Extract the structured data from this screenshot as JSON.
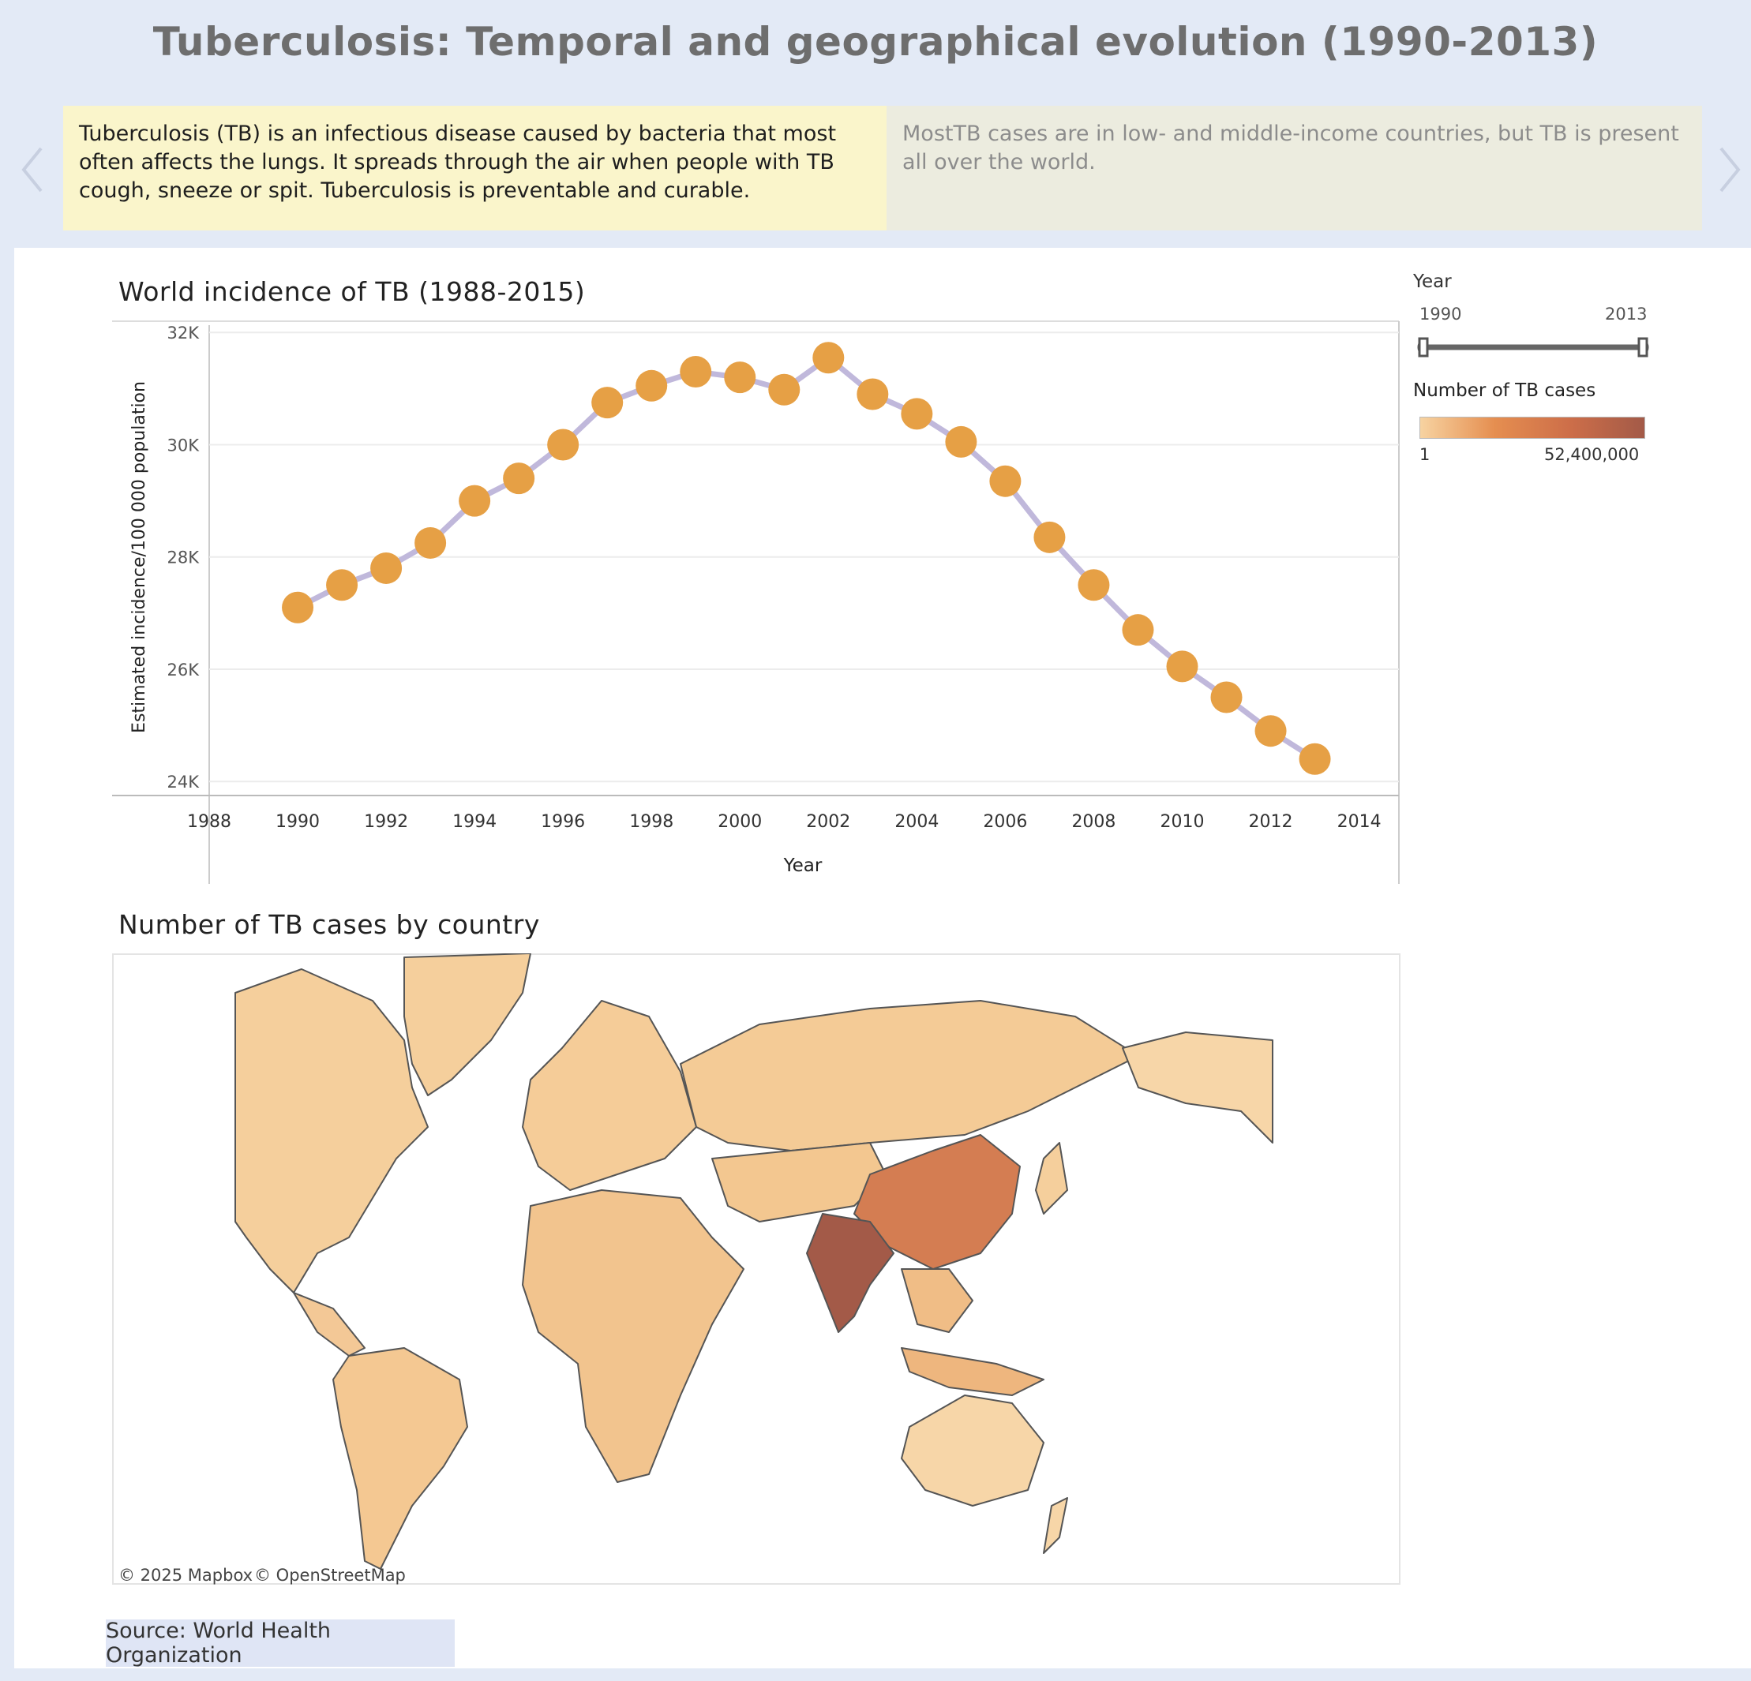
{
  "title": "Tuberculosis: Temporal and geographical evolution (1990-2013)",
  "story": {
    "points": [
      {
        "text": "Tuberculosis (TB) is an infectious disease caused by bacteria that most often affects the lungs. It spreads through the air when people with TB cough, sneeze or spit. Tuberculosis is preventable and curable."
      },
      {
        "text": "MostTB cases are in low- and middle-income countries, but TB is present all over the world."
      }
    ]
  },
  "line_chart": {
    "title": "World incidence of TB (1988-2015)"
  },
  "map": {
    "title": "Number of TB cases by country",
    "attribution_mapbox": "© 2025 Mapbox",
    "attribution_osm": "© OpenStreetMap",
    "highlight_colors": {
      "india": "#a35a48",
      "china": "#d47d52",
      "base": "#f5cf9c"
    }
  },
  "legend": {
    "year_title": "Year",
    "year_min": "1990",
    "year_max": "2013",
    "cases_title": "Number of TB cases",
    "cases_min": "1",
    "cases_max": "52,400,000"
  },
  "source": "Source: World Health Organization",
  "chart_data": {
    "type": "line",
    "title": "World incidence of TB (1988-2015)",
    "xlabel": "Year",
    "ylabel": "Estimated incidence/100 000 population",
    "xlim": [
      1988,
      2014.9
    ],
    "ylim": [
      23.75,
      32.2
    ],
    "x_ticks": [
      "1988",
      "1990",
      "1992",
      "1994",
      "1996",
      "1998",
      "2000",
      "2002",
      "2004",
      "2006",
      "2008",
      "2010",
      "2012",
      "2014"
    ],
    "y_ticks": [
      "24K",
      "26K",
      "28K",
      "30K",
      "32K"
    ],
    "series": [
      {
        "x": [
          1990,
          1991,
          1992,
          1993,
          1994,
          1995,
          1996,
          1997,
          1998,
          1999,
          2000,
          2001,
          2002,
          2003,
          2004,
          2005,
          2006,
          2007,
          2008,
          2009,
          2010,
          2011,
          2012,
          2013
        ],
        "y": [
          27.1,
          27.5,
          27.8,
          28.25,
          29.0,
          29.4,
          30.0,
          30.75,
          31.05,
          31.3,
          31.2,
          30.98,
          31.55,
          30.9,
          30.55,
          30.05,
          29.35,
          28.35,
          27.5,
          26.7,
          26.05,
          25.5,
          24.9,
          24.4
        ]
      }
    ],
    "line_color": "#c0b8db",
    "marker_color": "#e6a045",
    "grid": true,
    "legend": "none"
  }
}
